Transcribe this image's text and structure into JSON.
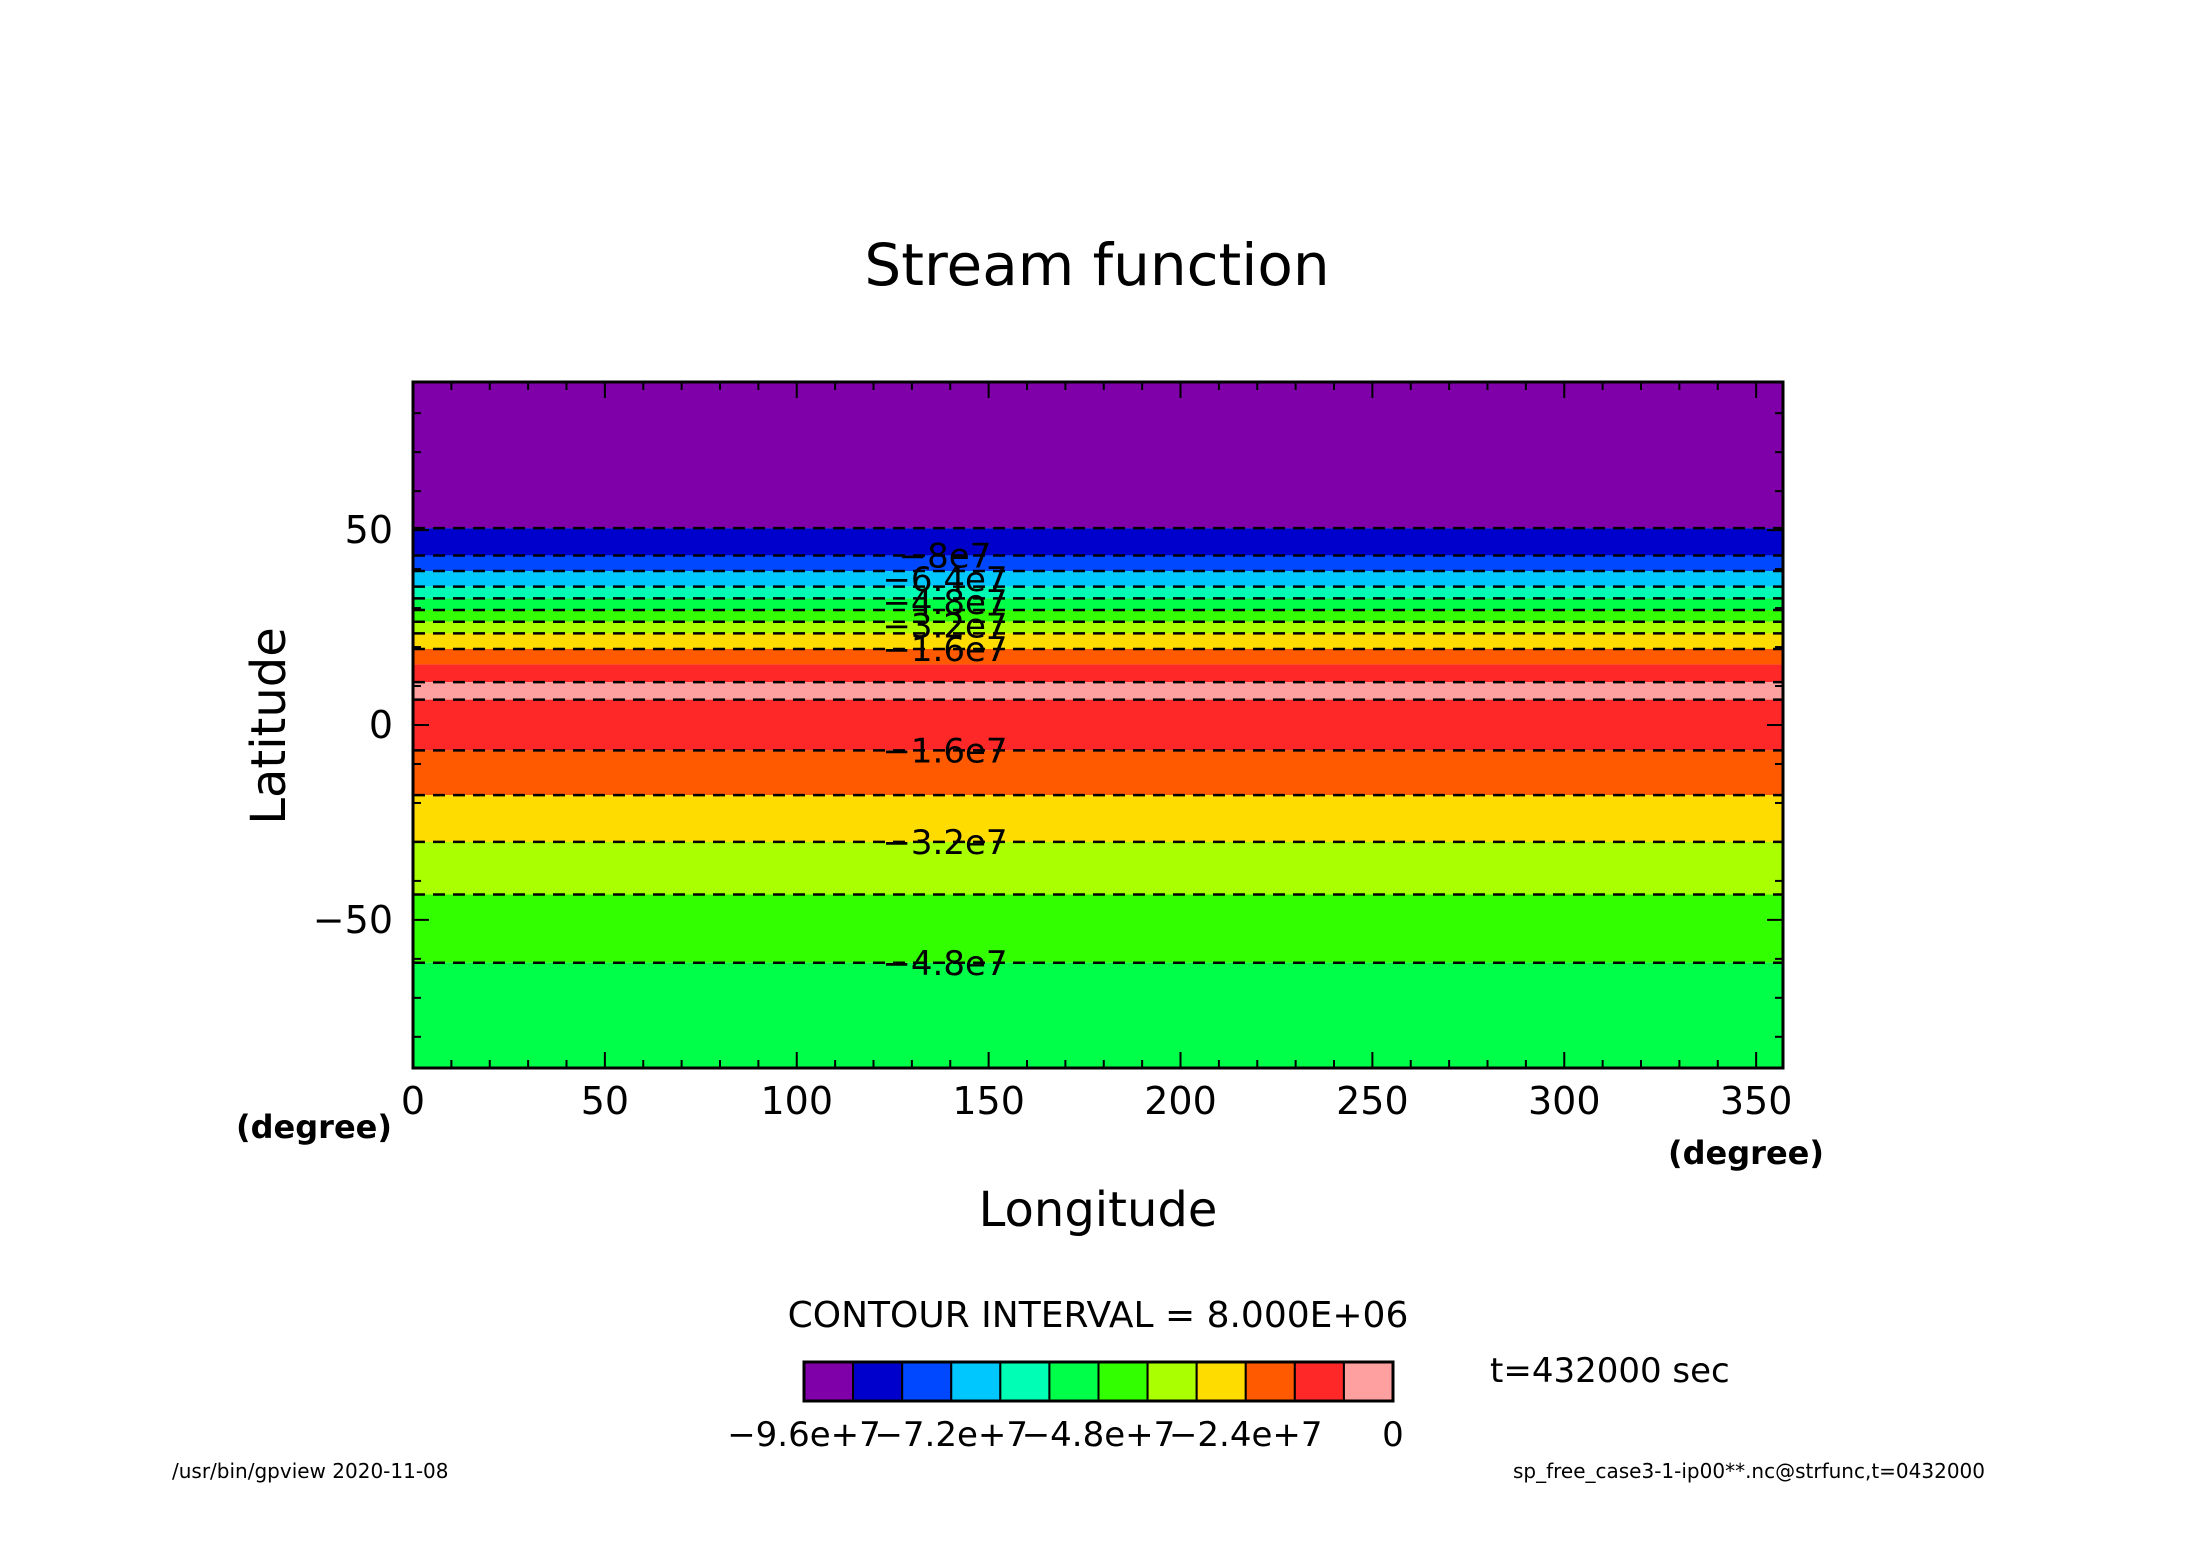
{
  "chart_data": {
    "type": "contour",
    "title": "Stream function",
    "xlabel": "Longitude",
    "ylabel": "Latitude",
    "x_unit_label": "(degree)",
    "y_unit_label": "(degree)",
    "xlim": [
      0,
      357
    ],
    "ylim": [
      -88,
      88
    ],
    "xticks": [
      0,
      50,
      100,
      150,
      200,
      250,
      300,
      350
    ],
    "yticks": [
      -50,
      0,
      50
    ],
    "xtick_labels": [
      "0",
      "50",
      "100",
      "150",
      "200",
      "250",
      "300",
      "350"
    ],
    "ytick_labels": [
      "−50",
      "0",
      "50"
    ],
    "contour_interval_text": "CONTOUR INTERVAL = 8.000E+06",
    "time_text": "t=432000 sec",
    "footer_left": "/usr/bin/gpview   2020-11-08",
    "footer_right": "sp_free_case3-1-ip00**.nc@strfunc,t=0432000",
    "colorbar": {
      "colors": [
        "#7f00a8",
        "#0000cc",
        "#0048ff",
        "#00c8ff",
        "#00ffb4",
        "#00ff48",
        "#32ff00",
        "#aaff00",
        "#ffdc00",
        "#ff5a00",
        "#ff2828",
        "#ffa0a0"
      ],
      "labels": [
        "−9.6e+7",
        "−7.2e+7",
        "−4.8e+7",
        "−2.4e+7",
        "0"
      ]
    },
    "bands": [
      {
        "lat_from": 50.5,
        "lat_to": 88,
        "color": "#7f00a8"
      },
      {
        "lat_from": 43.5,
        "lat_to": 50.5,
        "color": "#0000cc"
      },
      {
        "lat_from": 39.5,
        "lat_to": 43.5,
        "color": "#0048ff"
      },
      {
        "lat_from": 35.5,
        "lat_to": 39.5,
        "color": "#00c8ff"
      },
      {
        "lat_from": 32.5,
        "lat_to": 35.5,
        "color": "#00ffb4"
      },
      {
        "lat_from": 29.5,
        "lat_to": 32.5,
        "color": "#00ff48"
      },
      {
        "lat_from": 26.5,
        "lat_to": 29.5,
        "color": "#32ff00"
      },
      {
        "lat_from": 23.5,
        "lat_to": 26.5,
        "color": "#aaff00"
      },
      {
        "lat_from": 19.5,
        "lat_to": 23.5,
        "color": "#ffdc00"
      },
      {
        "lat_from": 15.5,
        "lat_to": 19.5,
        "color": "#ff5a00"
      },
      {
        "lat_from": 11.0,
        "lat_to": 15.5,
        "color": "#ff2828"
      },
      {
        "lat_from": 6.5,
        "lat_to": 11.0,
        "color": "#ffa0a0"
      },
      {
        "lat_from": -6.5,
        "lat_to": 6.5,
        "color": "#ff2828"
      },
      {
        "lat_from": -18.0,
        "lat_to": -6.5,
        "color": "#ff5a00"
      },
      {
        "lat_from": -30.0,
        "lat_to": -18.0,
        "color": "#ffdc00"
      },
      {
        "lat_from": -43.5,
        "lat_to": -30.0,
        "color": "#aaff00"
      },
      {
        "lat_from": -61.0,
        "lat_to": -43.5,
        "color": "#32ff00"
      },
      {
        "lat_from": -88,
        "lat_to": -61.0,
        "color": "#00ff48"
      }
    ],
    "contour_lines": [
      50.5,
      43.5,
      39.5,
      35.5,
      32.5,
      29.5,
      26.5,
      23.5,
      19.5,
      11.0,
      6.5,
      -6.5,
      -18.0,
      -30.0,
      -43.5,
      -61.0
    ],
    "contour_labels": [
      {
        "text": "−8e7",
        "lat": 43.5
      },
      {
        "text": "−6.4e7",
        "lat": 37.5
      },
      {
        "text": "−4.8e7",
        "lat": 31.5
      },
      {
        "text": "−3.2e7",
        "lat": 25.5
      },
      {
        "text": "−1.6e7",
        "lat": 19.5
      },
      {
        "text": "−1.6e7",
        "lat": -6.5
      },
      {
        "text": "−3.2e7",
        "lat": -30.0
      },
      {
        "text": "−4.8e7",
        "lat": -61.0
      }
    ]
  }
}
